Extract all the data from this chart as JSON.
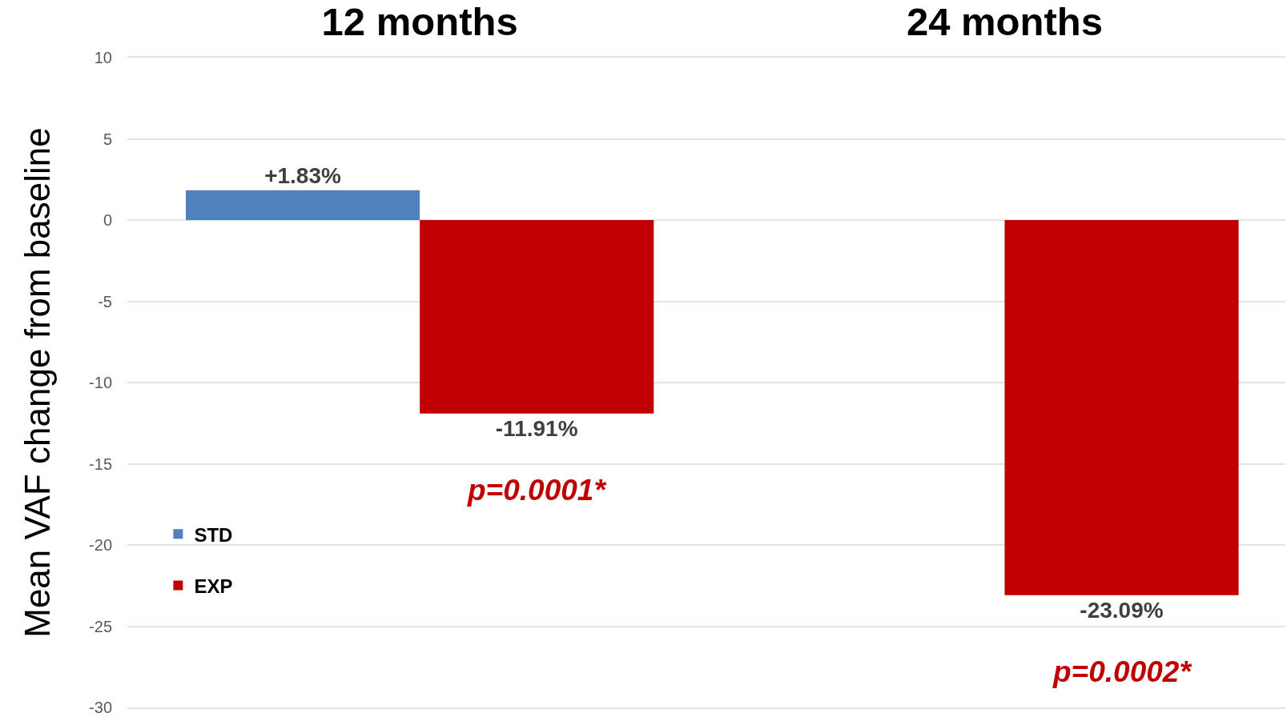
{
  "chart_data": {
    "type": "bar",
    "categories": [
      "12 months",
      "24 months"
    ],
    "ylabel": "Mean VAF change from baseline",
    "series": [
      {
        "name": "STD",
        "color": "#4f81bd",
        "values": [
          1.83,
          null
        ],
        "value_labels": [
          "+1.83%",
          null
        ]
      },
      {
        "name": "EXP",
        "color": "#c00000",
        "values": [
          -11.91,
          -23.09
        ],
        "value_labels": [
          "-11.91%",
          "-23.09%"
        ]
      }
    ],
    "ylim": [
      -30,
      10
    ],
    "yticks": [
      -30,
      -25,
      -20,
      -15,
      -10,
      -5,
      0,
      5,
      10
    ],
    "grid": "y",
    "legend": "bottom left",
    "annotations": [
      "p=0.0001*",
      "p=0.0002*"
    ]
  }
}
